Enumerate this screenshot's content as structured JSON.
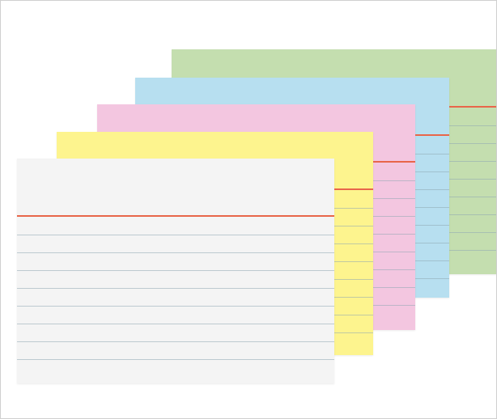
{
  "colors": {
    "frame_border": "#cfcfcf",
    "rule_red": "#e8664a",
    "rule_line": "#8fa7b3",
    "cards": {
      "green": "#c4deaf",
      "blue": "#b7dff0",
      "pink": "#f3c6e0",
      "yellow": "#fdf48e",
      "white": "#f4f4f4"
    }
  },
  "cards": [
    {
      "name": "green-index-card",
      "color_key": "green"
    },
    {
      "name": "blue-index-card",
      "color_key": "blue"
    },
    {
      "name": "pink-index-card",
      "color_key": "pink"
    },
    {
      "name": "yellow-index-card",
      "color_key": "yellow"
    },
    {
      "name": "white-index-card",
      "color_key": "white"
    }
  ]
}
